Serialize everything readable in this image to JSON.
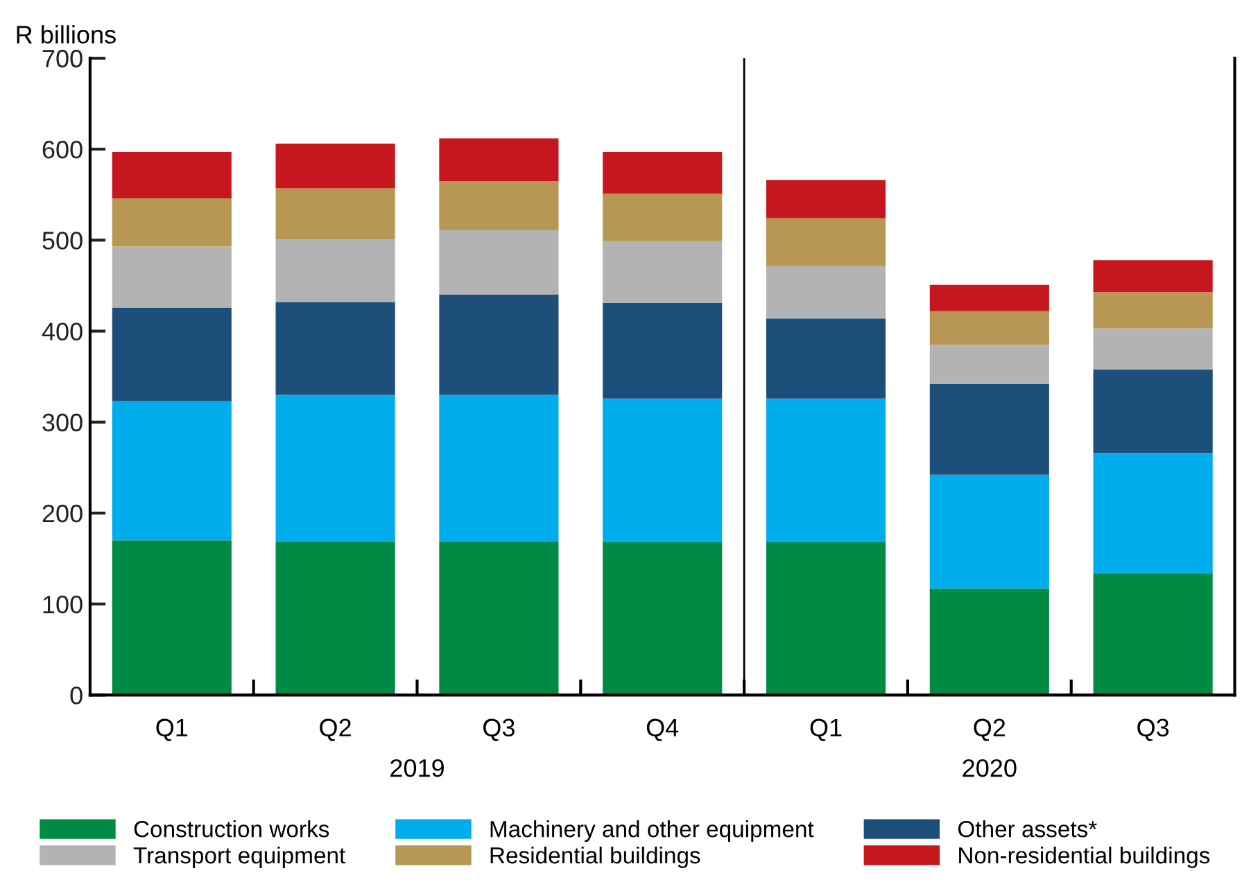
{
  "chart_data": {
    "type": "bar",
    "stacked": true,
    "ylabel": "R billions",
    "categories": [
      "Q1",
      "Q2",
      "Q3",
      "Q4",
      "Q1",
      "Q2",
      "Q3"
    ],
    "series": [
      {
        "name": "Construction works",
        "color": "#008a44",
        "values": [
          170,
          169,
          169,
          168,
          168,
          117,
          134
        ]
      },
      {
        "name": "Machinery and other equipment",
        "color": "#00adec",
        "values": [
          153,
          161,
          161,
          158,
          158,
          125,
          132
        ]
      },
      {
        "name": "Other assets*",
        "color": "#1c4f79",
        "values": [
          103,
          102,
          110,
          105,
          88,
          100,
          92
        ]
      },
      {
        "name": "Transport equipment",
        "color": "#b3b3b3",
        "values": [
          67,
          69,
          71,
          68,
          58,
          43,
          45
        ]
      },
      {
        "name": "Residential buildings",
        "color": "#b89653",
        "values": [
          53,
          56,
          54,
          52,
          52,
          37,
          40
        ]
      },
      {
        "name": "Non-residential buildings",
        "color": "#c6171f",
        "values": [
          51,
          49,
          47,
          46,
          42,
          29,
          35
        ]
      }
    ],
    "ylim": [
      0,
      700
    ],
    "yticks": [
      0,
      100,
      200,
      300,
      400,
      500,
      600,
      700
    ],
    "annotations": [
      "2019",
      "2020"
    ],
    "legend": "bottom",
    "grid": false
  }
}
